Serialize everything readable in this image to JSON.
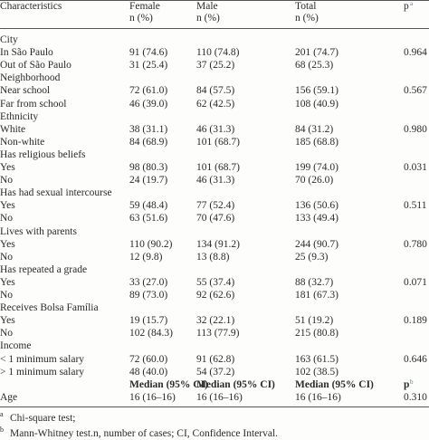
{
  "header": {
    "characteristics": "Characteristics",
    "female": {
      "name": "Female",
      "unit": "n (%)"
    },
    "male": {
      "name": "Male",
      "unit": "n (%)"
    },
    "total": {
      "name": "Total",
      "unit": "n (%)"
    },
    "p": {
      "text": "p",
      "sup": "a"
    }
  },
  "rows": [
    {
      "label": "City"
    },
    {
      "label": "In São Paulo",
      "female": "91 (74.6)",
      "male": "110 (74.8)",
      "total": "201 (74.7)",
      "p": "0.964"
    },
    {
      "label": "Out of São Paulo",
      "female": "31 (25.4)",
      "male": "37 (25.2)",
      "total": "68 (25.3)"
    },
    {
      "label": "Neighborhood"
    },
    {
      "label": "Near school",
      "female": "72 (61.0)",
      "male": "84 (57.5)",
      "total": "156 (59.1)",
      "p": "0.567"
    },
    {
      "label": "Far from school",
      "female": "46 (39.0)",
      "male": "62 (42.5)",
      "total": "108 (40.9)"
    },
    {
      "label": "Ethnicity"
    },
    {
      "label": "White",
      "female": "38 (31.1)",
      "male": "46 (31.3)",
      "total": "84 (31.2)",
      "p": "0.980"
    },
    {
      "label": "Non-white",
      "female": "84 (68.9)",
      "male": "101 (68.7)",
      "total": "185 (68.8)"
    },
    {
      "label": "Has religious beliefs"
    },
    {
      "label": "Yes",
      "female": "98 (80.3)",
      "male": "101 (68.7)",
      "total": "199 (74.0)",
      "p": "0.031"
    },
    {
      "label": "No",
      "female": "24 (19.7)",
      "male": "46 (31.3)",
      "total": "70 (26.0)"
    },
    {
      "label": "Has had sexual intercourse"
    },
    {
      "label": "Yes",
      "female": "59 (48.4)",
      "male": "77 (52.4)",
      "total": "136 (50.6)",
      "p": "0.511"
    },
    {
      "label": "No",
      "female": "63 (51.6)",
      "male": "70 (47.6)",
      "total": "133 (49.4)"
    },
    {
      "label": "Lives with parents"
    },
    {
      "label": "Yes",
      "female": "110 (90.2)",
      "male": "134 (91.2)",
      "total": "244 (90.7)",
      "p": "0.780"
    },
    {
      "label": "No",
      "female": "12 (9.8)",
      "male": "13 (8.8)",
      "total": "25 (9.3)"
    },
    {
      "label": "Has repeated a grade"
    },
    {
      "label": "Yes",
      "female": "33 (27.0)",
      "male": "55 (37.4)",
      "total": "88 (32.7)",
      "p": "0.071"
    },
    {
      "label": "No",
      "female": "89 (73.0)",
      "male": "92 (62.6)",
      "total": "181 (67.3)"
    },
    {
      "label": "Receives Bolsa Família"
    },
    {
      "label": "Yes",
      "female": "19 (15.7)",
      "male": "32 (22.1)",
      "total": "51 (19.2)",
      "p": "0.189"
    },
    {
      "label": "No",
      "female": "102 (84.3)",
      "male": "113 (77.9)",
      "total": "215 (80.8)"
    },
    {
      "label": "Income"
    },
    {
      "label": "< 1 minimum salary",
      "female": "72 (60.0)",
      "male": "91 (62.8)",
      "total": "163 (61.5)",
      "p": "0.646"
    },
    {
      "label": "> 1 minimum salary",
      "female": "48 (40.0)",
      "male": "54 (37.2)",
      "total": "102 (38.5)"
    }
  ],
  "median_header": {
    "female": "Median (95% CI)",
    "male": "Median (95% CI)",
    "total": "Median (95% CI)",
    "p": "p",
    "p_sup": "b"
  },
  "age_row": {
    "label": "Age",
    "female": "16 (16–16)",
    "male": "16 (16–16)",
    "total": "16 (16–16)",
    "p": "0.310"
  },
  "footnotes": [
    {
      "mark": "a",
      "text": "Chi-square test;"
    },
    {
      "mark": "b",
      "text": "Mann-Whitney test.n, number of cases; CI, Confidence Interval."
    }
  ]
}
